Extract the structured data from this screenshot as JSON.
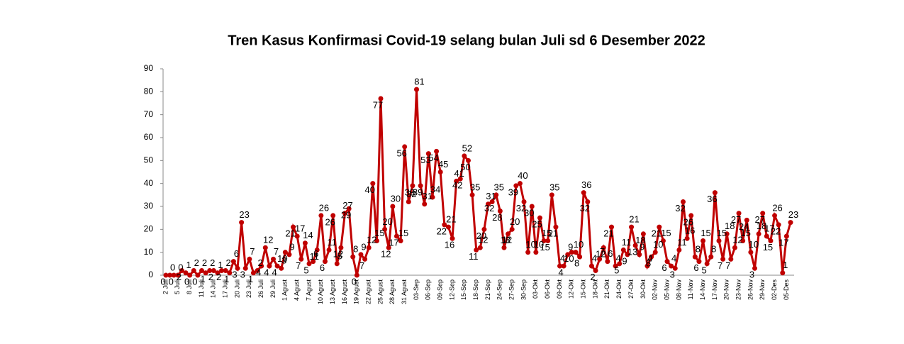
{
  "chart_data": {
    "type": "line",
    "title": "Tren Kasus Konfirmasi Covid-19 selang bulan Juli  sd 6 Desember 2022",
    "categories": [
      "2 Juli",
      null,
      null,
      "5 Juli",
      null,
      null,
      "8 Juli",
      null,
      null,
      "11 Juli",
      null,
      null,
      "14 Juli",
      null,
      null,
      "17 Juli",
      null,
      null,
      "20 Juli",
      null,
      null,
      "23 Juli",
      null,
      null,
      "26 Juli",
      null,
      null,
      "29 Juli",
      null,
      null,
      "1 Agust",
      null,
      null,
      "4 Agust",
      null,
      null,
      "7 Agust",
      null,
      null,
      "10 Agust",
      null,
      null,
      "13 Agust",
      null,
      null,
      "16 Agust",
      null,
      null,
      "19 Agust",
      null,
      null,
      "22 Agust",
      null,
      null,
      "25 Agust",
      null,
      null,
      "28 Agust",
      null,
      null,
      "31 Agust",
      null,
      null,
      "03-Sep",
      null,
      null,
      "06-Sep",
      null,
      null,
      "09-Sep",
      null,
      null,
      "12-Sep",
      null,
      null,
      "15-Sep",
      null,
      null,
      "18-Sep",
      null,
      null,
      "21-Sep",
      null,
      null,
      "24-Sep",
      null,
      null,
      "27-Sep",
      null,
      null,
      "30-Sep",
      null,
      null,
      "03-Okt",
      null,
      null,
      "06-Okt",
      null,
      null,
      "09-Okt",
      null,
      null,
      "12-Okt",
      null,
      null,
      "15-Okt",
      null,
      null,
      "18-Okt",
      null,
      null,
      "21-Okt",
      null,
      null,
      "24-Okt",
      null,
      null,
      "27-Okt",
      null,
      null,
      "30-Okt",
      null,
      null,
      "02-Nov",
      null,
      null,
      "05-Nov",
      null,
      null,
      "08-Nov",
      null,
      null,
      "11-Nov",
      null,
      null,
      "14-Nov",
      null,
      null,
      "17-Nov",
      null,
      null,
      "20-Nov",
      null,
      null,
      "23-Nov",
      null,
      null,
      "26-Nov",
      null,
      null,
      "29-Nov",
      null,
      null,
      "02-Des",
      null,
      null,
      "05-Des",
      null
    ],
    "values": [
      0,
      0,
      0,
      0,
      2,
      1,
      0,
      2,
      0,
      2,
      1,
      2,
      2,
      1,
      2,
      2,
      1,
      6,
      3,
      23,
      3,
      7,
      1,
      2,
      4,
      12,
      4,
      7,
      4,
      3,
      10,
      9,
      21,
      17,
      7,
      14,
      5,
      6,
      11,
      26,
      6,
      11,
      26,
      5,
      12,
      27,
      29,
      8,
      0,
      9,
      7,
      12,
      40,
      15,
      77,
      20,
      12,
      30,
      17,
      15,
      56,
      32,
      39,
      81,
      39,
      31,
      53,
      34,
      54,
      45,
      22,
      21,
      16,
      41,
      42,
      52,
      50,
      35,
      11,
      12,
      20,
      31,
      32,
      35,
      28,
      12,
      18,
      20,
      39,
      40,
      32,
      10,
      30,
      10,
      25,
      15,
      15,
      35,
      21,
      4,
      4,
      9,
      10,
      10,
      8,
      36,
      32,
      4,
      2,
      7,
      12,
      6,
      21,
      4,
      5,
      11,
      9,
      21,
      13,
      9,
      18,
      4,
      8,
      10,
      21,
      15,
      6,
      4,
      3,
      11,
      32,
      16,
      26,
      8,
      6,
      15,
      5,
      8,
      36,
      15,
      7,
      18,
      7,
      12,
      27,
      15,
      24,
      10,
      3,
      18,
      27,
      17,
      15,
      26,
      22,
      1,
      17,
      23
    ],
    "color": "#c00000",
    "ylim": [
      0,
      90
    ],
    "yticks": [
      0,
      10,
      20,
      30,
      40,
      50,
      60,
      70,
      80,
      90
    ]
  }
}
